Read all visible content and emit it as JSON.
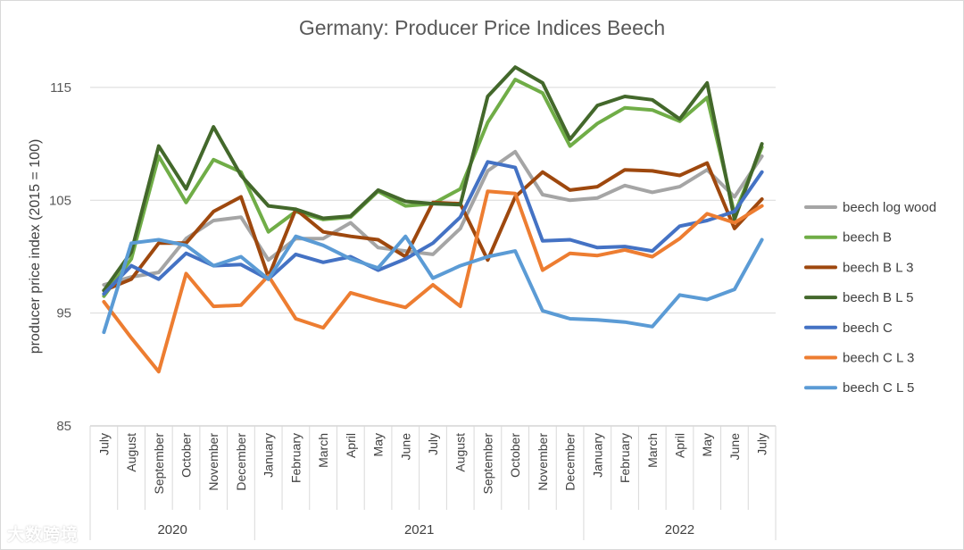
{
  "chart_data": {
    "type": "line",
    "title": "Germany: Producer Price Indices Beech",
    "ylabel": "producer price index (2015 = 100)",
    "xlabel": "",
    "ylim": [
      85,
      118
    ],
    "yticks": [
      85,
      95,
      105,
      115
    ],
    "grid": true,
    "legend_position": "right",
    "categories": [
      "July",
      "August",
      "September",
      "October",
      "November",
      "December",
      "January",
      "February",
      "March",
      "April",
      "May",
      "June",
      "July",
      "August",
      "September",
      "October",
      "November",
      "December",
      "January",
      "February",
      "March",
      "April",
      "May",
      "June",
      "July"
    ],
    "year_groups": [
      {
        "label": "2020",
        "count": 6
      },
      {
        "label": "2021",
        "count": 12
      },
      {
        "label": "2022",
        "count": 7
      }
    ],
    "series": [
      {
        "name": "beech log wood",
        "color": "#a5a5a5",
        "values": [
          97.5,
          98.2,
          98.6,
          101.6,
          103.2,
          103.5,
          99.7,
          101.6,
          101.6,
          103.0,
          100.8,
          100.5,
          100.2,
          102.5,
          107.6,
          109.3,
          105.5,
          105.0,
          105.2,
          106.3,
          105.7,
          106.2,
          107.7,
          105.3,
          108.9
        ]
      },
      {
        "name": "beech B",
        "color": "#70ad47",
        "values": [
          96.5,
          99.8,
          108.9,
          104.8,
          108.6,
          107.5,
          102.2,
          104.0,
          103.3,
          103.5,
          105.8,
          104.5,
          104.7,
          106.0,
          111.9,
          115.7,
          114.5,
          109.8,
          111.8,
          113.2,
          113.0,
          112.0,
          114.1,
          103.8,
          109.7
        ]
      },
      {
        "name": "beech B L 3",
        "color": "#9e480e",
        "values": [
          97.0,
          98.0,
          101.2,
          101.2,
          104.0,
          105.3,
          98.2,
          104.2,
          102.2,
          101.8,
          101.5,
          100.0,
          104.8,
          104.7,
          99.7,
          105.3,
          107.5,
          105.9,
          106.2,
          107.7,
          107.6,
          107.2,
          108.3,
          102.5,
          105.1
        ]
      },
      {
        "name": "beech B L 5",
        "color": "#43682b",
        "values": [
          97.0,
          100.4,
          109.8,
          106.0,
          111.5,
          107.2,
          104.5,
          104.2,
          103.4,
          103.6,
          105.9,
          104.9,
          104.7,
          104.6,
          114.2,
          116.8,
          115.4,
          110.4,
          113.4,
          114.2,
          113.9,
          112.2,
          115.4,
          103.3,
          110.0
        ]
      },
      {
        "name": "beech C",
        "color": "#4472c4",
        "values": [
          96.7,
          99.2,
          98.0,
          100.3,
          99.2,
          99.3,
          98.0,
          100.2,
          99.5,
          100.0,
          98.8,
          99.8,
          101.2,
          103.5,
          108.4,
          107.9,
          101.4,
          101.5,
          100.8,
          100.9,
          100.5,
          102.7,
          103.2,
          104.0,
          107.5
        ]
      },
      {
        "name": "beech C L 3",
        "color": "#ed7d31",
        "values": [
          96.0,
          92.8,
          89.8,
          98.5,
          95.6,
          95.7,
          98.3,
          94.5,
          93.7,
          96.8,
          96.1,
          95.5,
          97.5,
          95.6,
          105.8,
          105.6,
          98.8,
          100.3,
          100.1,
          100.6,
          100.0,
          101.6,
          103.8,
          103.0,
          104.5
        ]
      },
      {
        "name": "beech C L 5",
        "color": "#5b9bd5",
        "values": [
          93.3,
          101.2,
          101.5,
          101.0,
          99.2,
          100.0,
          98.0,
          101.8,
          101.0,
          99.8,
          99.0,
          101.8,
          98.1,
          99.2,
          100.0,
          100.5,
          95.2,
          94.5,
          94.4,
          94.2,
          93.8,
          96.6,
          96.2,
          97.1,
          101.5
        ]
      }
    ]
  },
  "watermark": "大数跨境"
}
